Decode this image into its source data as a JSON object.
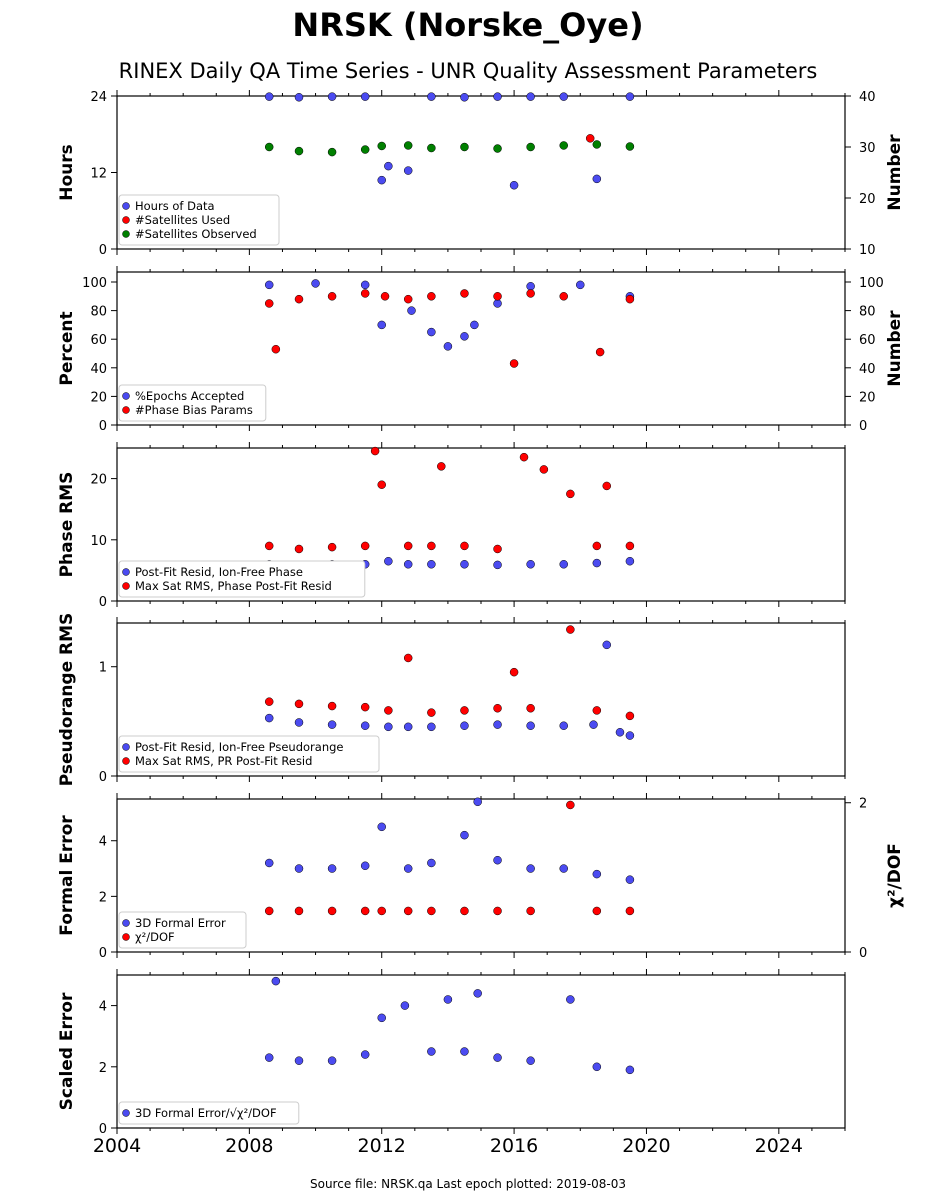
{
  "title": "NRSK (Norske_Oye)",
  "subtitle": "RINEX Daily QA Time Series - UNR Quality Assessment Parameters",
  "footer": "Source file: NRSK.qa Last epoch plotted: 2019-08-03",
  "colors": {
    "blue": "#4b4bf0",
    "red": "#ff0000",
    "green": "#008000",
    "dark_red": "#7a0000",
    "marker_edge": "#000000"
  },
  "chart_data": [
    {
      "type": "scatter",
      "ylabel": "Hours",
      "y2label": "Number",
      "xlim": [
        2004,
        2026
      ],
      "ylim": [
        0,
        24
      ],
      "yticks": [
        0,
        12,
        24
      ],
      "y2lim": [
        10,
        40
      ],
      "y2ticks": [
        10,
        20,
        30,
        40
      ],
      "legend_position": "lower-left",
      "series": [
        {
          "name": "Hours of Data",
          "axis": "left",
          "color": "blue",
          "x": [
            2008.6,
            2009.5,
            2010.5,
            2011.5,
            2012.0,
            2012.2,
            2012.8,
            2013.5,
            2014.5,
            2015.5,
            2016.0,
            2016.5,
            2017.5,
            2018.5,
            2019.5
          ],
          "y": [
            23.9,
            23.8,
            23.9,
            23.9,
            10.8,
            13.0,
            12.3,
            23.9,
            23.8,
            23.9,
            10.0,
            23.9,
            23.9,
            11.0,
            23.9
          ]
        },
        {
          "name": "#Satellites Used",
          "axis": "right",
          "color": "red",
          "x": [
            2018.3
          ],
          "y": [
            31.7
          ]
        },
        {
          "name": "#Satellites Observed",
          "axis": "right",
          "color": "green",
          "x": [
            2008.6,
            2009.5,
            2010.5,
            2011.5,
            2012.0,
            2012.8,
            2013.5,
            2014.5,
            2015.5,
            2016.5,
            2017.5,
            2018.5,
            2019.5
          ],
          "y": [
            30.0,
            29.2,
            29.0,
            29.5,
            30.2,
            30.3,
            29.8,
            30.0,
            29.7,
            30.0,
            30.3,
            30.5,
            30.1
          ]
        }
      ]
    },
    {
      "type": "scatter",
      "ylabel": "Percent",
      "y2label": "Number",
      "xlim": [
        2004,
        2026
      ],
      "ylim": [
        0,
        107
      ],
      "yticks": [
        0,
        20,
        40,
        60,
        80,
        100
      ],
      "y2lim": [
        0,
        107
      ],
      "y2ticks": [
        0,
        20,
        40,
        60,
        80,
        100
      ],
      "legend_position": "lower-left",
      "series": [
        {
          "name": "%Epochs Accepted",
          "axis": "left",
          "color": "blue",
          "x": [
            2008.6,
            2010.0,
            2011.5,
            2012.0,
            2012.9,
            2013.5,
            2014.0,
            2014.5,
            2014.8,
            2015.5,
            2016.5,
            2018.0,
            2019.5
          ],
          "y": [
            98,
            99,
            98,
            70,
            80,
            65,
            55,
            62,
            70,
            85,
            97,
            98,
            90
          ]
        },
        {
          "name": "#Phase Bias Params",
          "axis": "right",
          "color": "red",
          "x": [
            2008.6,
            2008.8,
            2009.5,
            2010.5,
            2011.5,
            2012.1,
            2012.8,
            2013.5,
            2014.5,
            2015.5,
            2016.0,
            2016.5,
            2017.5,
            2018.6,
            2019.5
          ],
          "y": [
            85,
            53,
            88,
            90,
            92,
            90,
            88,
            90,
            92,
            90,
            43,
            92,
            90,
            51,
            88
          ]
        }
      ]
    },
    {
      "type": "scatter",
      "ylabel": "Phase RMS",
      "xlim": [
        2004,
        2026
      ],
      "ylim": [
        0,
        25
      ],
      "yticks": [
        0,
        10,
        20
      ],
      "legend_position": "lower-left",
      "series": [
        {
          "name": "Post-Fit Resid, Ion-Free Phase",
          "color": "blue",
          "x": [
            2008.6,
            2009.5,
            2010.5,
            2011.5,
            2012.2,
            2012.8,
            2013.5,
            2014.5,
            2015.5,
            2016.5,
            2017.5,
            2018.5,
            2019.5
          ],
          "y": [
            6.0,
            5.8,
            6.0,
            6.0,
            6.5,
            6.0,
            6.0,
            6.0,
            5.9,
            6.0,
            6.0,
            6.2,
            6.5
          ]
        },
        {
          "name": "Max Sat RMS, Phase Post-Fit Resid",
          "color": "red",
          "x": [
            2008.6,
            2009.5,
            2010.5,
            2011.5,
            2011.8,
            2012.0,
            2012.8,
            2013.5,
            2013.8,
            2014.5,
            2015.5,
            2016.3,
            2016.9,
            2017.7,
            2018.5,
            2018.8,
            2019.5
          ],
          "y": [
            9.0,
            8.5,
            8.8,
            9.0,
            24.5,
            19.0,
            9.0,
            9.0,
            22.0,
            9.0,
            8.5,
            23.5,
            21.5,
            17.5,
            9.0,
            18.8,
            9.0
          ]
        }
      ]
    },
    {
      "type": "scatter",
      "ylabel": "Pseudorange RMS",
      "xlim": [
        2004,
        2026
      ],
      "ylim": [
        0,
        1.4
      ],
      "yticks": [
        0,
        1
      ],
      "legend_position": "lower-left",
      "series": [
        {
          "name": "Post-Fit Resid, Ion-Free Pseudorange",
          "color": "blue",
          "x": [
            2008.6,
            2009.5,
            2010.5,
            2011.5,
            2012.2,
            2012.8,
            2013.5,
            2014.5,
            2015.5,
            2016.5,
            2017.5,
            2018.4,
            2018.8,
            2019.2,
            2019.5
          ],
          "y": [
            0.53,
            0.49,
            0.47,
            0.46,
            0.45,
            0.45,
            0.45,
            0.46,
            0.47,
            0.46,
            0.46,
            0.47,
            1.2,
            0.4,
            0.37
          ]
        },
        {
          "name": "Max Sat RMS, PR Post-Fit Resid",
          "color": "red",
          "x": [
            2008.6,
            2009.5,
            2010.5,
            2011.5,
            2012.2,
            2012.8,
            2013.5,
            2014.5,
            2015.5,
            2016.0,
            2016.5,
            2017.7,
            2018.5,
            2019.5
          ],
          "y": [
            0.68,
            0.66,
            0.64,
            0.63,
            0.6,
            1.08,
            0.58,
            0.6,
            0.62,
            0.95,
            0.62,
            1.34,
            0.6,
            0.55
          ]
        }
      ]
    },
    {
      "type": "scatter",
      "ylabel": "Formal Error",
      "y2label": "χ²/DOF",
      "xlim": [
        2004,
        2026
      ],
      "ylim": [
        0,
        5.5
      ],
      "yticks": [
        0,
        2,
        4
      ],
      "y2lim": [
        0,
        2.05
      ],
      "y2ticks": [
        0,
        2
      ],
      "legend_position": "lower-left",
      "series": [
        {
          "name": "3D Formal Error",
          "axis": "left",
          "color": "blue",
          "x": [
            2008.6,
            2009.5,
            2010.5,
            2011.5,
            2012.0,
            2012.8,
            2013.5,
            2014.5,
            2014.9,
            2015.5,
            2016.5,
            2017.5,
            2018.5,
            2019.5
          ],
          "y": [
            3.2,
            3.0,
            3.0,
            3.1,
            4.5,
            3.0,
            3.2,
            4.2,
            5.4,
            3.3,
            3.0,
            3.0,
            2.8,
            2.6
          ]
        },
        {
          "name": "χ²/DOF",
          "axis": "right",
          "color": "red",
          "x": [
            2008.6,
            2009.5,
            2010.5,
            2011.5,
            2012.0,
            2012.8,
            2013.5,
            2014.5,
            2015.5,
            2016.5,
            2017.7,
            2018.5,
            2019.5
          ],
          "y": [
            0.55,
            0.55,
            0.55,
            0.55,
            0.55,
            0.55,
            0.55,
            0.55,
            0.55,
            0.55,
            1.97,
            0.55,
            0.55
          ]
        }
      ]
    },
    {
      "type": "scatter",
      "ylabel": "Scaled Error",
      "xlim": [
        2004,
        2026
      ],
      "xticks": [
        2004,
        2008,
        2012,
        2016,
        2020,
        2024
      ],
      "ylim": [
        0,
        5
      ],
      "yticks": [
        0,
        2,
        4
      ],
      "legend_position": "lower-left",
      "series": [
        {
          "name": "3D Formal Error/√χ²/DOF",
          "color": "blue",
          "x": [
            2008.6,
            2008.8,
            2009.5,
            2010.5,
            2011.5,
            2012.0,
            2012.7,
            2013.5,
            2014.0,
            2014.5,
            2014.9,
            2015.5,
            2016.5,
            2017.7,
            2018.5,
            2019.5
          ],
          "y": [
            2.3,
            4.8,
            2.2,
            2.2,
            2.4,
            3.6,
            4.0,
            2.5,
            4.2,
            2.5,
            4.4,
            2.3,
            2.2,
            4.2,
            2.0,
            1.9
          ]
        }
      ]
    }
  ]
}
